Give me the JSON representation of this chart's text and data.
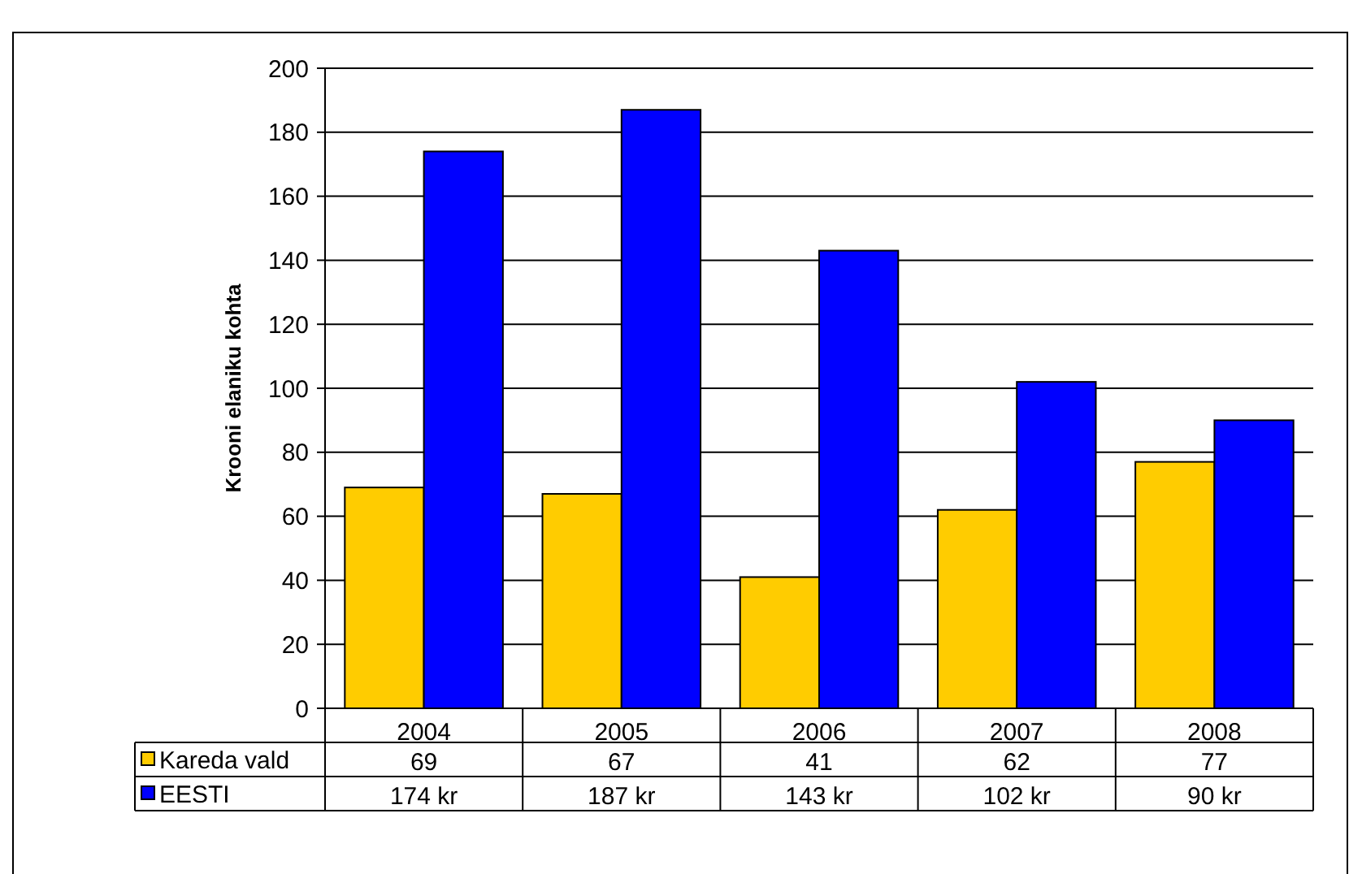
{
  "chart_data": {
    "type": "bar",
    "ylabel": "Krooni elaniku kohta",
    "categories": [
      "2004",
      "2005",
      "2006",
      "2007",
      "2008"
    ],
    "series": [
      {
        "name": "Kareda vald",
        "color": "#ffcc00",
        "values": [
          69,
          67,
          41,
          62,
          77
        ],
        "value_labels": [
          "69",
          "67",
          "41",
          "62",
          "77"
        ]
      },
      {
        "name": "EESTI",
        "color": "#0000ff",
        "values": [
          174,
          187,
          143,
          102,
          90
        ],
        "value_labels": [
          "174 kr",
          "187 kr",
          "143 kr",
          "102 kr",
          "90 kr"
        ]
      }
    ],
    "ylim": [
      0,
      200
    ],
    "yticks": [
      0,
      20,
      40,
      60,
      80,
      100,
      120,
      140,
      160,
      180,
      200
    ],
    "grid": "y",
    "legend": "bottom"
  }
}
